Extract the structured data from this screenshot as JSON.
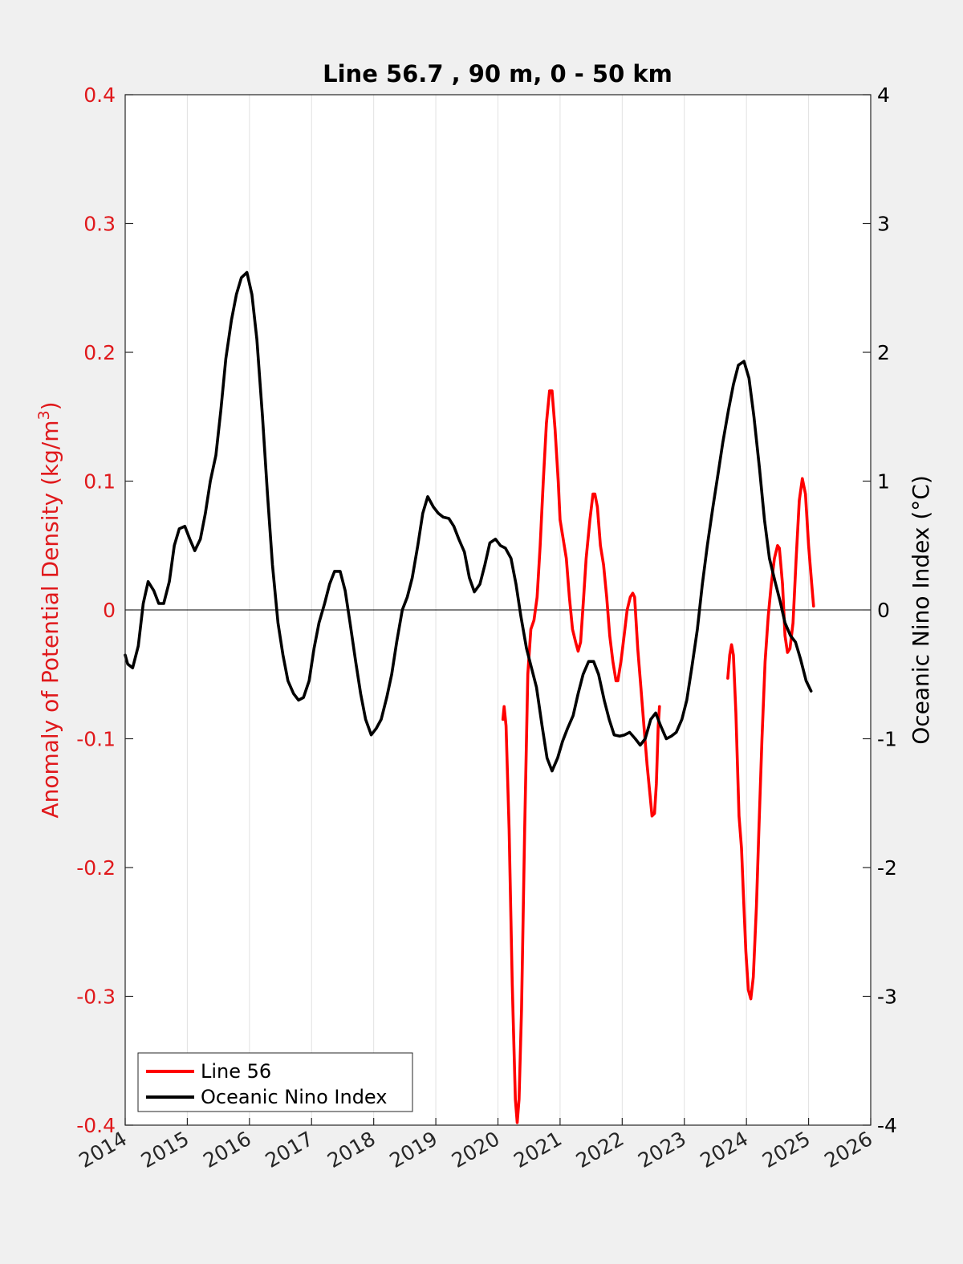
{
  "chart_data": {
    "type": "line",
    "title": "Line 56.7 , 90 m, 0 - 50 km",
    "xlim": [
      2014,
      2026
    ],
    "xticks": [
      "2014",
      "2015",
      "2016",
      "2017",
      "2018",
      "2019",
      "2020",
      "2021",
      "2022",
      "2023",
      "2024",
      "2025",
      "2026"
    ],
    "y_left": {
      "label_main": "Anomaly of Potential Density (kg/m",
      "label_sup": "3",
      "label_end": ")",
      "lim": [
        -0.4,
        0.4
      ],
      "ticks": [
        "-0.4",
        "-0.3",
        "-0.2",
        "-0.1",
        "0",
        "0.1",
        "0.2",
        "0.3",
        "0.4"
      ],
      "color": "#e0191c"
    },
    "y_right": {
      "label": "Oceanic Nino Index (°C)",
      "lim": [
        -4,
        4
      ],
      "ticks": [
        "-4",
        "-3",
        "-2",
        "-1",
        "0",
        "1",
        "2",
        "3",
        "4"
      ],
      "color": "#000000"
    },
    "grid": "x-only",
    "zero_line": true,
    "legend_position": "bottom-left",
    "series": [
      {
        "name": "Line 56",
        "axis": "left",
        "color": "#ff0000",
        "segments": [
          [
            [
              2020.08,
              -0.085
            ],
            [
              2020.1,
              -0.075
            ],
            [
              2020.13,
              -0.09
            ],
            [
              2020.18,
              -0.17
            ],
            [
              2020.23,
              -0.29
            ],
            [
              2020.28,
              -0.38
            ],
            [
              2020.31,
              -0.398
            ],
            [
              2020.34,
              -0.38
            ],
            [
              2020.38,
              -0.31
            ],
            [
              2020.43,
              -0.17
            ],
            [
              2020.48,
              -0.05
            ],
            [
              2020.53,
              -0.015
            ],
            [
              2020.58,
              -0.008
            ],
            [
              2020.63,
              0.01
            ],
            [
              2020.68,
              0.05
            ],
            [
              2020.73,
              0.1
            ],
            [
              2020.78,
              0.145
            ],
            [
              2020.83,
              0.17
            ],
            [
              2020.87,
              0.17
            ],
            [
              2020.92,
              0.14
            ],
            [
              2020.97,
              0.1
            ],
            [
              2021.0,
              0.07
            ],
            [
              2021.05,
              0.055
            ],
            [
              2021.1,
              0.04
            ],
            [
              2021.15,
              0.01
            ],
            [
              2021.2,
              -0.015
            ],
            [
              2021.25,
              -0.025
            ],
            [
              2021.29,
              -0.032
            ],
            [
              2021.33,
              -0.025
            ],
            [
              2021.38,
              0.01
            ],
            [
              2021.42,
              0.04
            ],
            [
              2021.48,
              0.07
            ],
            [
              2021.53,
              0.09
            ],
            [
              2021.56,
              0.09
            ],
            [
              2021.6,
              0.08
            ],
            [
              2021.65,
              0.05
            ],
            [
              2021.7,
              0.035
            ],
            [
              2021.75,
              0.01
            ],
            [
              2021.8,
              -0.02
            ],
            [
              2021.85,
              -0.04
            ],
            [
              2021.9,
              -0.055
            ],
            [
              2021.93,
              -0.055
            ],
            [
              2021.98,
              -0.04
            ],
            [
              2022.03,
              -0.02
            ],
            [
              2022.08,
              0.0
            ],
            [
              2022.13,
              0.01
            ],
            [
              2022.17,
              0.013
            ],
            [
              2022.2,
              0.01
            ],
            [
              2022.25,
              -0.03
            ],
            [
              2022.3,
              -0.06
            ],
            [
              2022.35,
              -0.09
            ],
            [
              2022.4,
              -0.12
            ],
            [
              2022.45,
              -0.145
            ],
            [
              2022.48,
              -0.16
            ],
            [
              2022.52,
              -0.158
            ],
            [
              2022.55,
              -0.135
            ],
            [
              2022.58,
              -0.09
            ],
            [
              2022.6,
              -0.075
            ]
          ],
          [
            [
              2023.7,
              -0.053
            ],
            [
              2023.73,
              -0.035
            ],
            [
              2023.76,
              -0.027
            ],
            [
              2023.79,
              -0.035
            ],
            [
              2023.83,
              -0.08
            ],
            [
              2023.88,
              -0.16
            ],
            [
              2023.92,
              -0.185
            ],
            [
              2023.95,
              -0.22
            ],
            [
              2023.99,
              -0.265
            ],
            [
              2024.03,
              -0.295
            ],
            [
              2024.07,
              -0.302
            ],
            [
              2024.11,
              -0.285
            ],
            [
              2024.16,
              -0.23
            ],
            [
              2024.2,
              -0.17
            ],
            [
              2024.25,
              -0.1
            ],
            [
              2024.3,
              -0.04
            ],
            [
              2024.35,
              -0.005
            ],
            [
              2024.4,
              0.02
            ],
            [
              2024.45,
              0.04
            ],
            [
              2024.5,
              0.05
            ],
            [
              2024.53,
              0.048
            ],
            [
              2024.58,
              0.02
            ],
            [
              2024.62,
              -0.02
            ],
            [
              2024.66,
              -0.033
            ],
            [
              2024.7,
              -0.03
            ],
            [
              2024.75,
              -0.01
            ],
            [
              2024.8,
              0.04
            ],
            [
              2024.85,
              0.085
            ],
            [
              2024.9,
              0.102
            ],
            [
              2024.95,
              0.09
            ],
            [
              2025.0,
              0.05
            ],
            [
              2025.05,
              0.02
            ],
            [
              2025.08,
              0.003
            ]
          ]
        ]
      },
      {
        "name": "Oceanic Nino Index",
        "axis": "right",
        "color": "#000000",
        "segments": [
          [
            [
              2014.0,
              -0.35
            ],
            [
              2014.04,
              -0.42
            ],
            [
              2014.12,
              -0.45
            ],
            [
              2014.21,
              -0.28
            ],
            [
              2014.29,
              0.05
            ],
            [
              2014.37,
              0.22
            ],
            [
              2014.46,
              0.15
            ],
            [
              2014.54,
              0.05
            ],
            [
              2014.62,
              0.05
            ],
            [
              2014.71,
              0.22
            ],
            [
              2014.79,
              0.5
            ],
            [
              2014.87,
              0.63
            ],
            [
              2014.96,
              0.65
            ],
            [
              2015.04,
              0.55
            ],
            [
              2015.12,
              0.46
            ],
            [
              2015.21,
              0.55
            ],
            [
              2015.29,
              0.75
            ],
            [
              2015.37,
              1.0
            ],
            [
              2015.46,
              1.2
            ],
            [
              2015.54,
              1.55
            ],
            [
              2015.62,
              1.95
            ],
            [
              2015.71,
              2.25
            ],
            [
              2015.79,
              2.45
            ],
            [
              2015.87,
              2.58
            ],
            [
              2015.96,
              2.62
            ],
            [
              2016.04,
              2.45
            ],
            [
              2016.12,
              2.1
            ],
            [
              2016.21,
              1.5
            ],
            [
              2016.29,
              0.9
            ],
            [
              2016.37,
              0.35
            ],
            [
              2016.46,
              -0.1
            ],
            [
              2016.54,
              -0.35
            ],
            [
              2016.62,
              -0.55
            ],
            [
              2016.71,
              -0.65
            ],
            [
              2016.79,
              -0.7
            ],
            [
              2016.87,
              -0.68
            ],
            [
              2016.96,
              -0.55
            ],
            [
              2017.04,
              -0.3
            ],
            [
              2017.12,
              -0.1
            ],
            [
              2017.21,
              0.05
            ],
            [
              2017.29,
              0.2
            ],
            [
              2017.37,
              0.3
            ],
            [
              2017.46,
              0.3
            ],
            [
              2017.54,
              0.15
            ],
            [
              2017.62,
              -0.1
            ],
            [
              2017.71,
              -0.4
            ],
            [
              2017.79,
              -0.65
            ],
            [
              2017.87,
              -0.85
            ],
            [
              2017.96,
              -0.97
            ],
            [
              2018.04,
              -0.92
            ],
            [
              2018.12,
              -0.85
            ],
            [
              2018.21,
              -0.68
            ],
            [
              2018.29,
              -0.5
            ],
            [
              2018.37,
              -0.25
            ],
            [
              2018.46,
              0.0
            ],
            [
              2018.54,
              0.1
            ],
            [
              2018.62,
              0.25
            ],
            [
              2018.71,
              0.5
            ],
            [
              2018.79,
              0.75
            ],
            [
              2018.87,
              0.88
            ],
            [
              2018.96,
              0.8
            ],
            [
              2019.04,
              0.75
            ],
            [
              2019.12,
              0.72
            ],
            [
              2019.21,
              0.71
            ],
            [
              2019.29,
              0.65
            ],
            [
              2019.37,
              0.55
            ],
            [
              2019.46,
              0.45
            ],
            [
              2019.54,
              0.25
            ],
            [
              2019.62,
              0.14
            ],
            [
              2019.71,
              0.2
            ],
            [
              2019.79,
              0.35
            ],
            [
              2019.87,
              0.52
            ],
            [
              2019.96,
              0.55
            ],
            [
              2020.04,
              0.5
            ],
            [
              2020.12,
              0.48
            ],
            [
              2020.21,
              0.4
            ],
            [
              2020.29,
              0.2
            ],
            [
              2020.37,
              -0.05
            ],
            [
              2020.46,
              -0.3
            ],
            [
              2020.54,
              -0.45
            ],
            [
              2020.62,
              -0.6
            ],
            [
              2020.71,
              -0.9
            ],
            [
              2020.79,
              -1.15
            ],
            [
              2020.87,
              -1.25
            ],
            [
              2020.96,
              -1.15
            ],
            [
              2021.04,
              -1.02
            ],
            [
              2021.12,
              -0.92
            ],
            [
              2021.21,
              -0.82
            ],
            [
              2021.29,
              -0.65
            ],
            [
              2021.37,
              -0.5
            ],
            [
              2021.46,
              -0.4
            ],
            [
              2021.54,
              -0.4
            ],
            [
              2021.62,
              -0.5
            ],
            [
              2021.71,
              -0.7
            ],
            [
              2021.79,
              -0.85
            ],
            [
              2021.87,
              -0.97
            ],
            [
              2021.96,
              -0.98
            ],
            [
              2022.04,
              -0.97
            ],
            [
              2022.12,
              -0.95
            ],
            [
              2022.21,
              -1.0
            ],
            [
              2022.29,
              -1.05
            ],
            [
              2022.37,
              -1.0
            ],
            [
              2022.46,
              -0.85
            ],
            [
              2022.54,
              -0.8
            ],
            [
              2022.62,
              -0.9
            ],
            [
              2022.71,
              -1.0
            ],
            [
              2022.79,
              -0.98
            ],
            [
              2022.87,
              -0.95
            ],
            [
              2022.96,
              -0.85
            ],
            [
              2023.04,
              -0.7
            ],
            [
              2023.12,
              -0.45
            ],
            [
              2023.21,
              -0.15
            ],
            [
              2023.29,
              0.2
            ],
            [
              2023.37,
              0.5
            ],
            [
              2023.46,
              0.8
            ],
            [
              2023.54,
              1.05
            ],
            [
              2023.62,
              1.3
            ],
            [
              2023.71,
              1.55
            ],
            [
              2023.79,
              1.75
            ],
            [
              2023.87,
              1.9
            ],
            [
              2023.96,
              1.93
            ],
            [
              2024.04,
              1.8
            ],
            [
              2024.12,
              1.5
            ],
            [
              2024.21,
              1.1
            ],
            [
              2024.29,
              0.7
            ],
            [
              2024.37,
              0.4
            ],
            [
              2024.46,
              0.22
            ],
            [
              2024.54,
              0.07
            ],
            [
              2024.62,
              -0.1
            ],
            [
              2024.71,
              -0.2
            ],
            [
              2024.79,
              -0.25
            ],
            [
              2024.87,
              -0.38
            ],
            [
              2024.96,
              -0.55
            ],
            [
              2025.04,
              -0.63
            ]
          ]
        ]
      }
    ]
  }
}
